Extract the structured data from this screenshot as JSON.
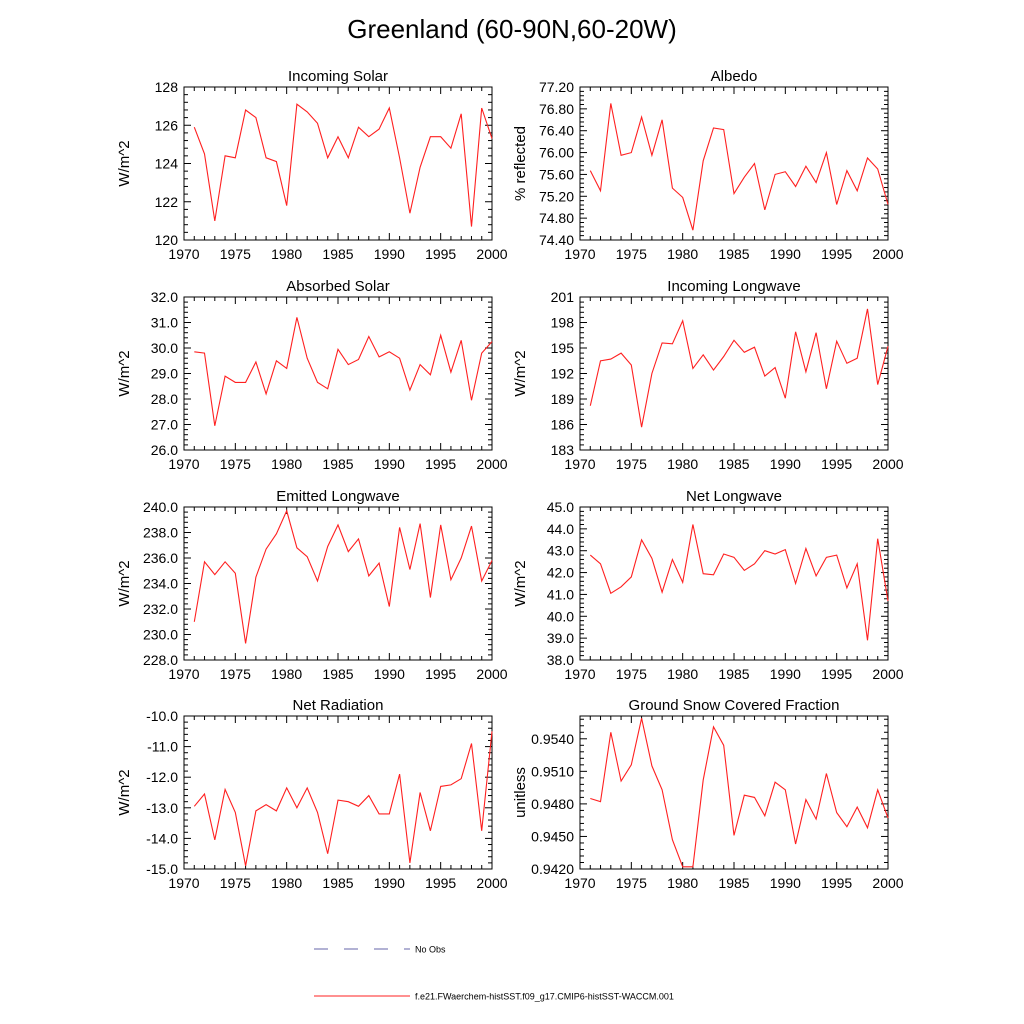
{
  "title": "Greenland (60-90N,60-20W)",
  "legend": [
    {
      "name": "No Obs",
      "color": "#6666aa",
      "dash": true
    },
    {
      "name": "f.e21.FWaerchem-histSST.f09_g17.CMIP6-histSST-WACCM.001",
      "color": "#ff2020",
      "dash": false
    }
  ],
  "chart_data": [
    {
      "type": "line",
      "title": "Incoming Solar",
      "ylabel": "W/m^2",
      "xlim": [
        1970,
        2000
      ],
      "ylim": [
        120,
        128
      ],
      "xticks": [
        1970,
        1975,
        1980,
        1985,
        1990,
        1995,
        2000
      ],
      "yticks": [
        120,
        122,
        124,
        126,
        128
      ],
      "ytick_labels": [
        "120",
        "122",
        "124",
        "126",
        "128"
      ],
      "series": [
        {
          "color": "#ff2020",
          "x": [
            1971,
            1972,
            1973,
            1974,
            1975,
            1976,
            1977,
            1978,
            1979,
            1980,
            1981,
            1982,
            1983,
            1984,
            1985,
            1986,
            1987,
            1988,
            1989,
            1990,
            1991,
            1992,
            1993,
            1994,
            1995,
            1996,
            1997,
            1998,
            1999,
            2000
          ],
          "y": [
            125.9,
            124.5,
            121.0,
            124.4,
            124.3,
            126.8,
            126.4,
            124.3,
            124.1,
            121.8,
            127.1,
            126.7,
            126.1,
            124.3,
            125.4,
            124.3,
            125.9,
            125.4,
            125.8,
            126.9,
            124.3,
            121.4,
            123.8,
            125.4,
            125.4,
            124.8,
            126.6,
            120.7,
            126.9,
            125.3
          ]
        }
      ]
    },
    {
      "type": "line",
      "title": "Albedo",
      "ylabel": "% reflected",
      "xlim": [
        1970,
        2000
      ],
      "ylim": [
        74.4,
        77.2
      ],
      "xticks": [
        1970,
        1975,
        1980,
        1985,
        1990,
        1995,
        2000
      ],
      "yticks": [
        74.4,
        74.8,
        75.2,
        75.6,
        76.0,
        76.4,
        76.8,
        77.2
      ],
      "ytick_labels": [
        "74.40",
        "74.80",
        "75.20",
        "75.60",
        "76.00",
        "76.40",
        "76.80",
        "77.20"
      ],
      "series": [
        {
          "color": "#ff2020",
          "x": [
            1971,
            1972,
            1973,
            1974,
            1975,
            1976,
            1977,
            1978,
            1979,
            1980,
            1981,
            1982,
            1983,
            1984,
            1985,
            1986,
            1987,
            1988,
            1989,
            1990,
            1991,
            1992,
            1993,
            1994,
            1995,
            1996,
            1997,
            1998,
            1999,
            2000
          ],
          "y": [
            75.67,
            75.3,
            76.9,
            75.95,
            76.0,
            76.65,
            75.95,
            76.6,
            75.35,
            75.18,
            74.58,
            75.85,
            76.45,
            76.42,
            75.25,
            75.55,
            75.8,
            74.95,
            75.6,
            75.65,
            75.38,
            75.75,
            75.45,
            76.0,
            75.05,
            75.67,
            75.3,
            75.9,
            75.7,
            75.05
          ]
        }
      ]
    },
    {
      "type": "line",
      "title": "Absorbed Solar",
      "ylabel": "W/m^2",
      "xlim": [
        1970,
        2000
      ],
      "ylim": [
        26.0,
        32.0
      ],
      "xticks": [
        1970,
        1975,
        1980,
        1985,
        1990,
        1995,
        2000
      ],
      "yticks": [
        26,
        27,
        28,
        29,
        30,
        31,
        32
      ],
      "ytick_labels": [
        "26.0",
        "27.0",
        "28.0",
        "29.0",
        "30.0",
        "31.0",
        "32.0"
      ],
      "series": [
        {
          "color": "#ff2020",
          "x": [
            1971,
            1972,
            1973,
            1974,
            1975,
            1976,
            1977,
            1978,
            1979,
            1980,
            1981,
            1982,
            1983,
            1984,
            1985,
            1986,
            1987,
            1988,
            1989,
            1990,
            1991,
            1992,
            1993,
            1994,
            1995,
            1996,
            1997,
            1998,
            1999,
            2000
          ],
          "y": [
            29.85,
            29.8,
            26.95,
            28.9,
            28.65,
            28.65,
            29.45,
            28.2,
            29.5,
            29.2,
            31.2,
            29.6,
            28.65,
            28.4,
            29.95,
            29.35,
            29.55,
            30.45,
            29.65,
            29.85,
            29.6,
            28.35,
            29.35,
            28.95,
            30.5,
            29.05,
            30.3,
            27.95,
            29.8,
            30.25
          ]
        }
      ]
    },
    {
      "type": "line",
      "title": "Incoming Longwave",
      "ylabel": "W/m^2",
      "xlim": [
        1970,
        2000
      ],
      "ylim": [
        183,
        201
      ],
      "xticks": [
        1970,
        1975,
        1980,
        1985,
        1990,
        1995,
        2000
      ],
      "yticks": [
        183,
        186,
        189,
        192,
        195,
        198,
        201
      ],
      "ytick_labels": [
        "183",
        "186",
        "189",
        "192",
        "195",
        "198",
        "201"
      ],
      "series": [
        {
          "color": "#ff2020",
          "x": [
            1971,
            1972,
            1973,
            1974,
            1975,
            1976,
            1977,
            1978,
            1979,
            1980,
            1981,
            1982,
            1983,
            1984,
            1985,
            1986,
            1987,
            1988,
            1989,
            1990,
            1991,
            1992,
            1993,
            1994,
            1995,
            1996,
            1997,
            1998,
            1999,
            2000
          ],
          "y": [
            188.2,
            193.5,
            193.7,
            194.4,
            193.0,
            185.7,
            192.0,
            195.6,
            195.5,
            198.2,
            192.6,
            194.2,
            192.4,
            194.0,
            195.9,
            194.5,
            195.1,
            191.7,
            192.7,
            189.1,
            196.9,
            192.2,
            196.8,
            190.2,
            195.8,
            193.2,
            193.8,
            199.6,
            190.7,
            195.2
          ]
        }
      ]
    },
    {
      "type": "line",
      "title": "Emitted Longwave",
      "ylabel": "W/m^2",
      "xlim": [
        1970,
        2000
      ],
      "ylim": [
        228,
        240
      ],
      "xticks": [
        1970,
        1975,
        1980,
        1985,
        1990,
        1995,
        2000
      ],
      "yticks": [
        228,
        230,
        232,
        234,
        236,
        238,
        240
      ],
      "ytick_labels": [
        "228.0",
        "230.0",
        "232.0",
        "234.0",
        "236.0",
        "238.0",
        "240.0"
      ],
      "series": [
        {
          "color": "#ff2020",
          "x": [
            1971,
            1972,
            1973,
            1974,
            1975,
            1976,
            1977,
            1978,
            1979,
            1980,
            1981,
            1982,
            1983,
            1984,
            1985,
            1986,
            1987,
            1988,
            1989,
            1990,
            1991,
            1992,
            1993,
            1994,
            1995,
            1996,
            1997,
            1998,
            1999,
            2000
          ],
          "y": [
            231.0,
            235.7,
            234.7,
            235.7,
            234.8,
            229.3,
            234.5,
            236.7,
            237.9,
            239.7,
            236.8,
            236.1,
            234.2,
            236.9,
            238.6,
            236.5,
            237.5,
            234.6,
            235.6,
            232.2,
            238.4,
            235.1,
            238.7,
            232.9,
            238.6,
            234.3,
            236.0,
            238.5,
            234.2,
            235.8
          ]
        }
      ]
    },
    {
      "type": "line",
      "title": "Net Longwave",
      "ylabel": "W/m^2",
      "xlim": [
        1970,
        2000
      ],
      "ylim": [
        38.0,
        45.0
      ],
      "xticks": [
        1970,
        1975,
        1980,
        1985,
        1990,
        1995,
        2000
      ],
      "yticks": [
        38,
        39,
        40,
        41,
        42,
        43,
        44,
        45
      ],
      "ytick_labels": [
        "38.0",
        "39.0",
        "40.0",
        "41.0",
        "42.0",
        "43.0",
        "44.0",
        "45.0"
      ],
      "series": [
        {
          "color": "#ff2020",
          "x": [
            1971,
            1972,
            1973,
            1974,
            1975,
            1976,
            1977,
            1978,
            1979,
            1980,
            1981,
            1982,
            1983,
            1984,
            1985,
            1986,
            1987,
            1988,
            1989,
            1990,
            1991,
            1992,
            1993,
            1994,
            1995,
            1996,
            1997,
            1998,
            1999,
            2000
          ],
          "y": [
            42.8,
            42.4,
            41.05,
            41.35,
            41.8,
            43.5,
            42.65,
            41.1,
            42.6,
            41.55,
            44.2,
            41.95,
            41.9,
            42.85,
            42.7,
            42.1,
            42.4,
            43.0,
            42.85,
            43.05,
            41.5,
            43.1,
            41.85,
            42.7,
            42.8,
            41.3,
            42.4,
            38.9,
            43.55,
            40.7
          ]
        }
      ]
    },
    {
      "type": "line",
      "title": "Net Radiation",
      "ylabel": "W/m^2",
      "xlim": [
        1970,
        2000
      ],
      "ylim": [
        -15.0,
        -10.0
      ],
      "xticks": [
        1970,
        1975,
        1980,
        1985,
        1990,
        1995,
        2000
      ],
      "yticks": [
        -15,
        -14,
        -13,
        -12,
        -11,
        -10
      ],
      "ytick_labels": [
        "-15.0",
        "-14.0",
        "-13.0",
        "-12.0",
        "-11.0",
        "-10.0"
      ],
      "series": [
        {
          "color": "#ff2020",
          "x": [
            1971,
            1972,
            1973,
            1974,
            1975,
            1976,
            1977,
            1978,
            1979,
            1980,
            1981,
            1982,
            1983,
            1984,
            1985,
            1986,
            1987,
            1988,
            1989,
            1990,
            1991,
            1992,
            1993,
            1994,
            1995,
            1996,
            1997,
            1998,
            1999,
            2000
          ],
          "y": [
            -12.95,
            -12.55,
            -14.05,
            -12.4,
            -13.15,
            -14.9,
            -13.1,
            -12.9,
            -13.1,
            -12.35,
            -13.0,
            -12.35,
            -13.15,
            -14.5,
            -12.75,
            -12.8,
            -12.95,
            -12.6,
            -13.2,
            -13.2,
            -11.9,
            -14.8,
            -12.5,
            -13.75,
            -12.3,
            -12.25,
            -12.05,
            -10.9,
            -13.75,
            -10.5
          ]
        }
      ]
    },
    {
      "type": "line",
      "title": "Ground Snow Covered Fraction",
      "ylabel": "unitless",
      "xlim": [
        1970,
        2000
      ],
      "ylim": [
        0.942,
        0.9561
      ],
      "xticks": [
        1970,
        1975,
        1980,
        1985,
        1990,
        1995,
        2000
      ],
      "yticks": [
        0.942,
        0.945,
        0.948,
        0.951,
        0.954
      ],
      "ytick_labels": [
        "0.9420",
        "0.9450",
        "0.9480",
        "0.9510",
        "0.9540"
      ],
      "series": [
        {
          "color": "#ff2020",
          "x": [
            1971,
            1972,
            1973,
            1974,
            1975,
            1976,
            1977,
            1978,
            1979,
            1980,
            1981,
            1982,
            1983,
            1984,
            1985,
            1986,
            1987,
            1988,
            1989,
            1990,
            1991,
            1992,
            1993,
            1994,
            1995,
            1996,
            1997,
            1998,
            1999,
            2000
          ],
          "y": [
            0.9485,
            0.9482,
            0.9546,
            0.9501,
            0.9516,
            0.9559,
            0.9515,
            0.9493,
            0.9447,
            0.9422,
            0.9422,
            0.9502,
            0.9551,
            0.9534,
            0.9451,
            0.9488,
            0.9486,
            0.9469,
            0.95,
            0.9493,
            0.9443,
            0.9484,
            0.9466,
            0.9508,
            0.9472,
            0.9459,
            0.9477,
            0.9458,
            0.9493,
            0.9467
          ]
        }
      ]
    }
  ]
}
